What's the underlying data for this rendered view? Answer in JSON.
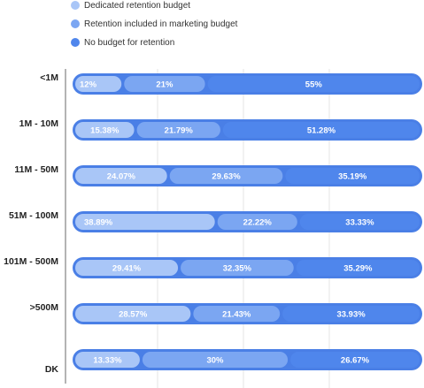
{
  "chart_data": {
    "type": "bar",
    "orientation": "horizontal",
    "stacked": true,
    "categories": [
      "<1M",
      "1M - 10M",
      "11M - 50M",
      "51M - 100M",
      "101M - 500M",
      ">500M",
      "DK"
    ],
    "series": [
      {
        "name": "Dedicated retention budget",
        "color": "#a9c6f7",
        "values": [
          12,
          15.38,
          24.07,
          38.89,
          29.41,
          28.57,
          13.33
        ],
        "labels": [
          "12%",
          "15.38%",
          "24.07%",
          "38.89%",
          "29.41%",
          "28.57%",
          "13.33%"
        ]
      },
      {
        "name": "Retention included in marketing budget",
        "color": "#7ba6f2",
        "values": [
          21,
          21.79,
          29.63,
          22.22,
          32.35,
          21.43,
          30
        ],
        "labels": [
          "21%",
          "21.79%",
          "29.63%",
          "22.22%",
          "32.35%",
          "21.43%",
          "30%"
        ]
      },
      {
        "name": "No budget for retention",
        "color": "#4f86ec",
        "values": [
          55,
          51.28,
          35.19,
          33.33,
          35.29,
          33.93,
          26.67
        ],
        "labels": [
          "55%",
          "51.28%",
          "35.19%",
          "33.33%",
          "35.29%",
          "33.93%",
          "26.67%"
        ]
      }
    ],
    "legend_position": "top-left",
    "grid": true
  }
}
